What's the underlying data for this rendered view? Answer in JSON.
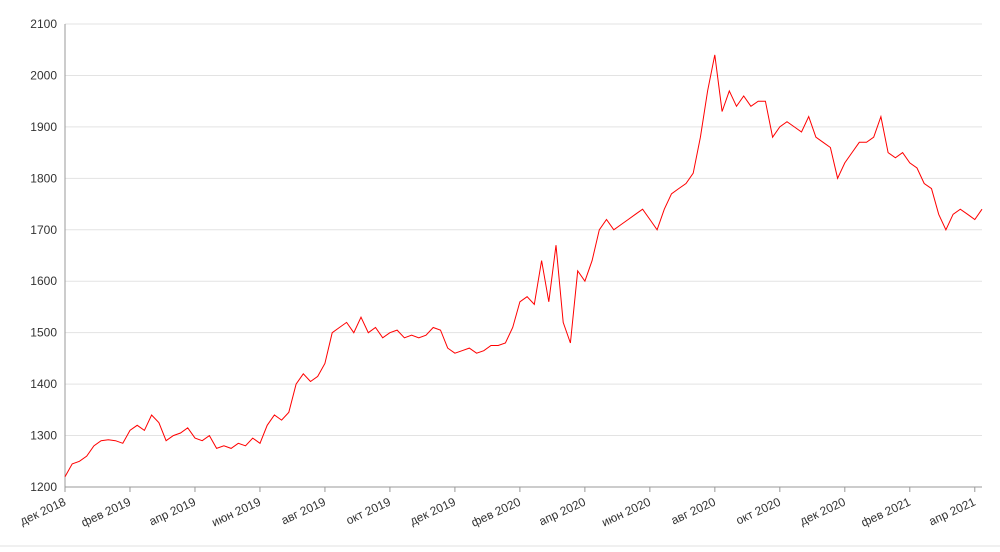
{
  "chart_data": {
    "type": "line",
    "categories": [
      "дек 2018",
      null,
      null,
      null,
      null,
      null,
      null,
      null,
      null,
      "фев 2019",
      null,
      null,
      null,
      null,
      null,
      null,
      null,
      null,
      "апр 2019",
      null,
      null,
      null,
      null,
      null,
      null,
      null,
      null,
      "июн 2019",
      null,
      null,
      null,
      null,
      null,
      null,
      null,
      null,
      "авг 2019",
      null,
      null,
      null,
      null,
      null,
      null,
      null,
      null,
      "окт 2019",
      null,
      null,
      null,
      null,
      null,
      null,
      null,
      null,
      "дек 2019",
      null,
      null,
      null,
      null,
      null,
      null,
      null,
      null,
      "фев 2020",
      null,
      null,
      null,
      null,
      null,
      null,
      null,
      null,
      "апр 2020",
      null,
      null,
      null,
      null,
      null,
      null,
      null,
      null,
      "июн 2020",
      null,
      null,
      null,
      null,
      null,
      null,
      null,
      null,
      "авг 2020",
      null,
      null,
      null,
      null,
      null,
      null,
      null,
      null,
      "окт 2020",
      null,
      null,
      null,
      null,
      null,
      null,
      null,
      null,
      "дек 2020",
      null,
      null,
      null,
      null,
      null,
      null,
      null,
      null,
      "фев 2021",
      null,
      null,
      null,
      null,
      null,
      null,
      null,
      null,
      "апр 2021",
      null
    ],
    "series": [
      {
        "color": "#ff0000",
        "values": [
          1220,
          1245,
          1250,
          1260,
          1280,
          1290,
          1292,
          1290,
          1285,
          1310,
          1320,
          1310,
          1340,
          1325,
          1290,
          1300,
          1305,
          1315,
          1295,
          1290,
          1300,
          1275,
          1280,
          1275,
          1285,
          1280,
          1295,
          1285,
          1320,
          1340,
          1330,
          1345,
          1400,
          1420,
          1405,
          1415,
          1440,
          1500,
          1510,
          1520,
          1500,
          1530,
          1500,
          1510,
          1490,
          1500,
          1505,
          1490,
          1495,
          1490,
          1495,
          1510,
          1505,
          1470,
          1460,
          1465,
          1470,
          1460,
          1465,
          1475,
          1475,
          1480,
          1510,
          1560,
          1570,
          1555,
          1640,
          1560,
          1670,
          1520,
          1480,
          1620,
          1600,
          1640,
          1700,
          1720,
          1700,
          1710,
          1720,
          1730,
          1740,
          1720,
          1700,
          1740,
          1770,
          1780,
          1790,
          1810,
          1880,
          1970,
          2040,
          1930,
          1970,
          1940,
          1960,
          1940,
          1950,
          1950,
          1880,
          1900,
          1910,
          1900,
          1890,
          1920,
          1880,
          1870,
          1860,
          1800,
          1830,
          1850,
          1870,
          1870,
          1880,
          1920,
          1850,
          1840,
          1850,
          1830,
          1820,
          1790,
          1780,
          1730,
          1700,
          1730,
          1740,
          1730,
          1720,
          1740
        ]
      }
    ],
    "ylim": [
      1200,
      2100
    ],
    "yticks": [
      1200,
      1300,
      1400,
      1500,
      1600,
      1700,
      1800,
      1900,
      2000,
      2100
    ],
    "grid": true
  }
}
